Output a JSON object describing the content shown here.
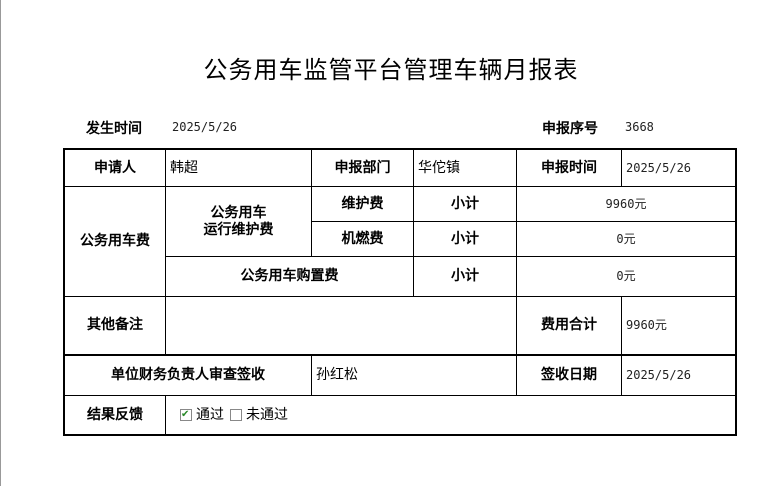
{
  "title": "公务用车监管平台管理车辆月报表",
  "header": {
    "occur_label": "发生时间",
    "occur_value": "2025/5/26",
    "serial_label": "申报序号",
    "serial_value": "3668"
  },
  "table": {
    "applicant_label": "申请人",
    "applicant": "韩超",
    "dept_label": "申报部门",
    "dept": "华佗镇",
    "time_label": "申报时间",
    "time": "2025/5/26",
    "fee_label": "公务用车费",
    "run_label_1": "公务用车",
    "run_label_2": "运行维护费",
    "maint_label": "维护费",
    "maint_sub": "小计",
    "maint_value": "9960元",
    "fuel_label": "机燃费",
    "fuel_sub": "小计",
    "fuel_value": "0元",
    "purchase_label": "公务用车购置费",
    "purchase_sub": "小计",
    "purchase_value": "0元",
    "remark_label": "其他备注",
    "remark": "",
    "total_label": "费用合计",
    "total": "9960元",
    "sign_label": "单位财务负责人审查签收",
    "signer": "孙红松",
    "sign_date_label": "签收日期",
    "sign_date": "2025/5/26",
    "result_label": "结果反馈",
    "result_options": [
      {
        "label": "通过",
        "checked": true
      },
      {
        "label": "未通过",
        "checked": false
      }
    ]
  }
}
